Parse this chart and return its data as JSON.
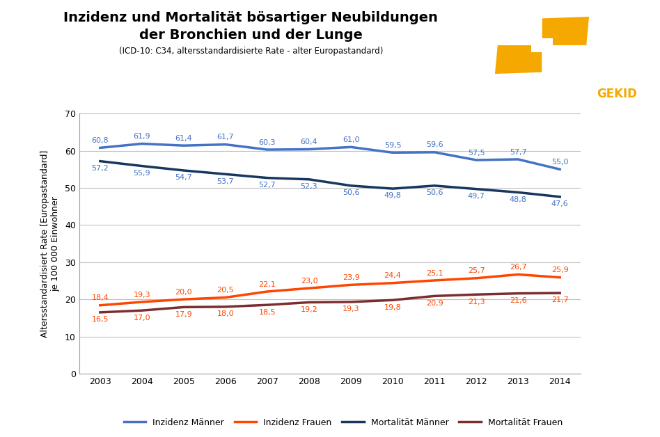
{
  "title_line1": "Inzidenz und Mortalität bösartiger Neubildungen",
  "title_line2": "der Bronchien und der Lunge",
  "subtitle": "(ICD-10: C34, altersstandardisierte Rate - alter Europastandard)",
  "ylabel": "Altersstandardisiert Rate [Europastandard]\nje 100 000 Einwohner",
  "years": [
    2003,
    2004,
    2005,
    2006,
    2007,
    2008,
    2009,
    2010,
    2011,
    2012,
    2013,
    2014
  ],
  "inzidenz_maenner": [
    60.8,
    61.9,
    61.4,
    61.7,
    60.3,
    60.4,
    61.0,
    59.5,
    59.6,
    57.5,
    57.7,
    55.0
  ],
  "mortalitaet_maenner": [
    57.2,
    55.9,
    54.7,
    53.7,
    52.7,
    52.3,
    50.6,
    49.8,
    50.6,
    49.7,
    48.8,
    47.6
  ],
  "inzidenz_frauen": [
    18.4,
    19.3,
    20.0,
    20.5,
    22.1,
    23.0,
    23.9,
    24.4,
    25.1,
    25.7,
    26.7,
    25.9
  ],
  "mortalitaet_frauen": [
    16.5,
    17.0,
    17.9,
    18.0,
    18.5,
    19.2,
    19.3,
    19.8,
    20.9,
    21.3,
    21.6,
    21.7
  ],
  "color_inzidenz_maenner": "#4472C4",
  "color_mortalitaet_maenner": "#17375E",
  "color_inzidenz_frauen": "#FF4500",
  "color_mortalitaet_frauen": "#7B2E2E",
  "ylim": [
    0,
    70
  ],
  "yticks": [
    0,
    10,
    20,
    30,
    40,
    50,
    60,
    70
  ],
  "background_color": "#FFFFFF",
  "plot_bg_color": "#FFFFFF",
  "grid_color": "#C0C0C0",
  "legend_labels": [
    "Inzidenz Männer",
    "Inzidenz Frauen",
    "Mortalität Männer",
    "Mortalität Frauen"
  ],
  "linewidth": 2.5,
  "label_fontsize": 8.0,
  "axis_fontsize": 9,
  "title_fontsize": 14,
  "subtitle_fontsize": 8.5,
  "logo_color": "#F5A800"
}
